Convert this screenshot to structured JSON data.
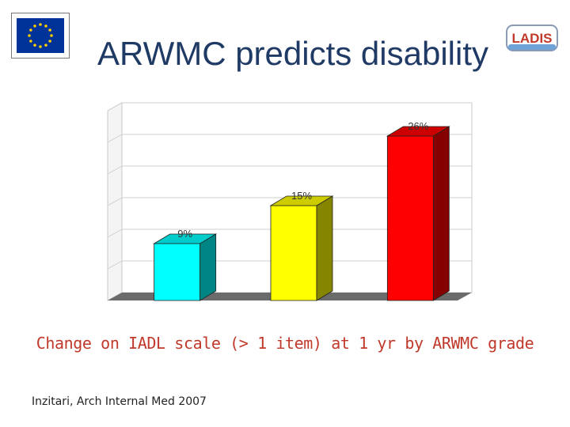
{
  "title": "ARWMC predicts disability",
  "logo_text": "LADIS",
  "caption": "Change on IADL scale (> 1 item) at 1 yr by ARWMC grade",
  "citation": "Inzitari, Arch Internal Med 2007",
  "chart_data": {
    "type": "bar",
    "categories": [
      "",
      "",
      ""
    ],
    "values": [
      9,
      15,
      26
    ],
    "data_labels": [
      "9%",
      "15%",
      "26%"
    ],
    "colors": [
      "#00ffff",
      "#ffff00",
      "#ff0000"
    ],
    "ylim": [
      0,
      30
    ],
    "grid": true
  }
}
